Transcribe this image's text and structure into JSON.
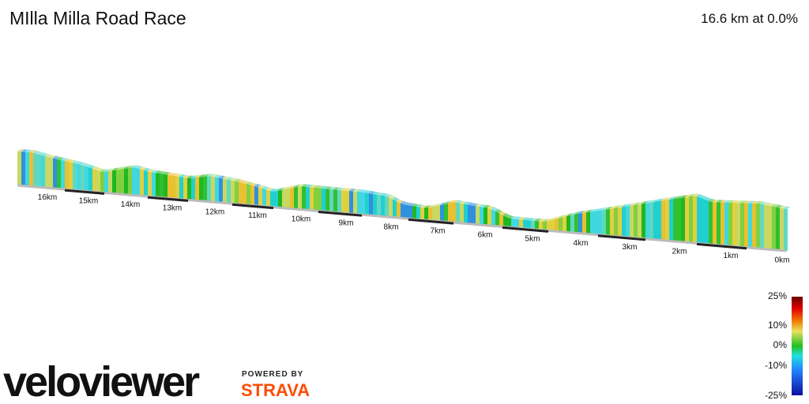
{
  "header": {
    "title": "MIlla Milla Road Race",
    "summary": "16.6 km at 0.0%"
  },
  "distance_labels": [
    "16km",
    "15km",
    "14km",
    "13km",
    "12km",
    "11km",
    "10km",
    "9km",
    "8km",
    "7km",
    "6km",
    "5km",
    "4km",
    "3km",
    "2km",
    "1km",
    "0km"
  ],
  "legend": {
    "labels": [
      "25%",
      "10%",
      "0%",
      "-10%",
      "-25%"
    ]
  },
  "branding": {
    "logo": "veloviewer",
    "powered": "POWERED BY",
    "partner": "STRAVA"
  }
}
